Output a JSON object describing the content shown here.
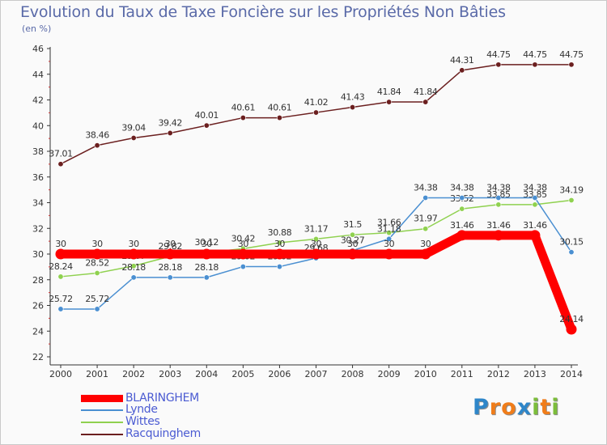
{
  "title": "Evolution du Taux de Taxe Foncière sur les Propriétés Non Bâties",
  "unit": "(en %)",
  "brand": {
    "letters": [
      "P",
      "r",
      "o",
      "x",
      "i",
      "t",
      "i"
    ],
    "colors": [
      "#2e86c9",
      "#f07d1a",
      "#f07d1a",
      "#2e86c9",
      "#7cbd3b",
      "#f07d1a",
      "#7cbd3b"
    ]
  },
  "chart_data": {
    "type": "line",
    "x": [
      "2000",
      "2001",
      "2002",
      "2003",
      "2004",
      "2005",
      "2006",
      "2007",
      "2008",
      "2009",
      "2010",
      "2011",
      "2012",
      "2013",
      "2014"
    ],
    "ylim": [
      22,
      46
    ],
    "yticks": [
      "22",
      "24",
      "26",
      "28",
      "30",
      "32",
      "34",
      "36",
      "38",
      "40",
      "42",
      "44",
      "46"
    ],
    "ytick_values": [
      22,
      24,
      26,
      28,
      30,
      32,
      34,
      36,
      38,
      40,
      42,
      44,
      46
    ],
    "grid": false,
    "legend_position": "bottom-left",
    "series": [
      {
        "name": "Racquinghem",
        "color": "#6b1f1f",
        "values": [
          37.01,
          38.46,
          39.04,
          39.42,
          40.01,
          40.61,
          40.61,
          41.02,
          41.43,
          41.84,
          41.84,
          44.31,
          44.75,
          44.75,
          44.75
        ],
        "labels": [
          "37.01",
          "38.46",
          "39.04",
          "39.42",
          "40.01",
          "40.61",
          "40.61",
          "41.02",
          "41.43",
          "41.84",
          "41.84",
          "44.31",
          "44.75",
          "44.75",
          "44.75"
        ]
      },
      {
        "name": "Wittes",
        "color": "#8fd14f",
        "values": [
          28.24,
          28.52,
          29.07,
          29.82,
          30.12,
          30.42,
          30.88,
          31.17,
          31.5,
          31.66,
          31.97,
          33.52,
          33.85,
          33.85,
          34.19
        ],
        "labels": [
          "28.24",
          "28.52",
          "29.07",
          "29.82",
          "30.12",
          "30.42",
          "30.88",
          "31.17",
          "31.5",
          "31.66",
          "31.97",
          "33.52",
          "33.85",
          "33.85",
          "34.19"
        ]
      },
      {
        "name": "Lynde",
        "color": "#4a8fd1",
        "values": [
          25.72,
          25.72,
          28.18,
          28.18,
          28.18,
          29.02,
          29.02,
          29.68,
          30.27,
          31.18,
          34.38,
          34.38,
          34.38,
          34.38,
          30.15
        ],
        "labels": [
          "25.72",
          "25.72",
          "28.18",
          "28.18",
          "28.18",
          "29.02",
          "29.02",
          "29.68",
          "30.27",
          "31.18",
          "34.38",
          "34.38",
          "34.38",
          "34.38",
          "30.15"
        ]
      },
      {
        "name": "BLARINGHEM",
        "color": "#ff0000",
        "values": [
          30,
          30,
          30,
          30,
          30,
          30,
          30,
          30,
          30,
          30,
          30,
          31.46,
          31.46,
          31.46,
          24.14
        ],
        "labels": [
          "30",
          "30",
          "30",
          "30",
          "30",
          "30",
          "30",
          "30",
          "30",
          "30",
          "30",
          "31.46",
          "31.46",
          "31.46",
          "24.14"
        ]
      }
    ],
    "legend": [
      "BLARINGHEM",
      "Lynde",
      "Wittes",
      "Racquinghem"
    ]
  }
}
